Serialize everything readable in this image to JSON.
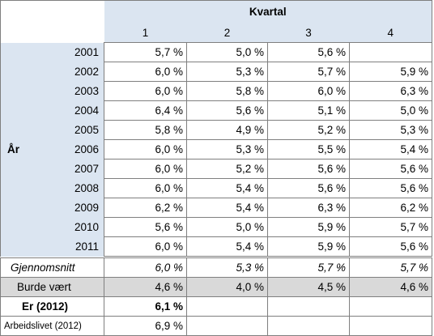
{
  "header": {
    "group_label": "Kvartal",
    "quarters": [
      "1",
      "2",
      "3",
      "4"
    ]
  },
  "row_category": "År",
  "years": [
    {
      "year": "2001",
      "values": [
        "5,7 %",
        "5,0 %",
        "5,6 %",
        ""
      ]
    },
    {
      "year": "2002",
      "values": [
        "6,0 %",
        "5,3 %",
        "5,7 %",
        "5,9 %"
      ]
    },
    {
      "year": "2003",
      "values": [
        "6,0 %",
        "5,8 %",
        "6,0 %",
        "6,3 %"
      ]
    },
    {
      "year": "2004",
      "values": [
        "6,4 %",
        "5,6 %",
        "5,1 %",
        "5,0 %"
      ]
    },
    {
      "year": "2005",
      "values": [
        "5,8 %",
        "4,9 %",
        "5,2 %",
        "5,3 %"
      ]
    },
    {
      "year": "2006",
      "values": [
        "6,0 %",
        "5,3 %",
        "5,5 %",
        "5,4 %"
      ]
    },
    {
      "year": "2007",
      "values": [
        "6,0 %",
        "5,2 %",
        "5,6 %",
        "5,6 %"
      ]
    },
    {
      "year": "2008",
      "values": [
        "6,0 %",
        "5,4 %",
        "5,6 %",
        "5,6 %"
      ]
    },
    {
      "year": "2009",
      "values": [
        "6,2 %",
        "5,4 %",
        "6,3 %",
        "6,2 %"
      ]
    },
    {
      "year": "2010",
      "values": [
        "5,6 %",
        "5,0 %",
        "5,9 %",
        "5,7 %"
      ]
    },
    {
      "year": "2011",
      "values": [
        "6,0 %",
        "5,4 %",
        "5,9 %",
        "5,6 %"
      ]
    }
  ],
  "summary": {
    "average": {
      "label": "Gjennomsnitt",
      "values": [
        "6,0 %",
        "5,3 %",
        "5,7 %",
        "5,7 %"
      ]
    },
    "target": {
      "label": "Burde vært",
      "values": [
        "4,6 %",
        "4,0 %",
        "4,5 %",
        "4,6 %"
      ]
    },
    "current": {
      "label": "Er (2012)",
      "values": [
        "6,1 %",
        "",
        "",
        ""
      ]
    },
    "worklife": {
      "label": "Arbeidslivet (2012)",
      "values": [
        "6,9 %",
        "",
        "",
        ""
      ]
    }
  }
}
